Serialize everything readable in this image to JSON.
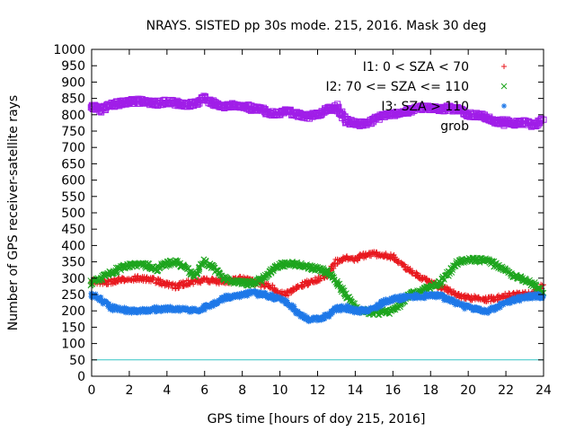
{
  "chart_data": {
    "type": "scatter",
    "title": "NRAYS. SISTED pp 30s mode. 215, 2016. Mask 30 deg",
    "xlabel": "GPS time [hours of doy 215, 2016]",
    "ylabel": "Number of GPS receiver-satellite rays",
    "xlim": [
      0,
      24
    ],
    "ylim": [
      0,
      1000
    ],
    "xticks": [
      "0",
      "2",
      "4",
      "6",
      "8",
      "10",
      "12",
      "14",
      "16",
      "18",
      "20",
      "22",
      "24"
    ],
    "yticks": [
      "0",
      "50",
      "100",
      "150",
      "200",
      "250",
      "300",
      "350",
      "400",
      "450",
      "500",
      "550",
      "600",
      "650",
      "700",
      "750",
      "800",
      "850",
      "900",
      "950",
      "1000"
    ],
    "legend_position": "top-right",
    "grid": false,
    "reference_line": {
      "y": 50,
      "color": "#33c6c6"
    },
    "series": [
      {
        "name": "I1: 0 < SZA < 70",
        "marker": "+",
        "color": "#e8191f",
        "x": [
          0,
          0.5,
          1,
          1.5,
          2,
          2.5,
          3,
          3.5,
          4,
          4.5,
          5,
          5.5,
          6,
          6.5,
          7,
          7.5,
          8,
          8.5,
          9,
          9.5,
          10,
          10.5,
          11,
          11.5,
          12,
          12.5,
          13,
          13.5,
          14,
          14.5,
          15,
          15.5,
          16,
          16.5,
          17,
          17.5,
          18,
          18.5,
          19,
          19.5,
          20,
          20.5,
          21,
          21.5,
          22,
          22.5,
          23,
          23.5,
          24
        ],
        "values": [
          290,
          285,
          290,
          295,
          298,
          300,
          298,
          290,
          280,
          275,
          285,
          290,
          295,
          292,
          285,
          295,
          300,
          290,
          280,
          275,
          250,
          255,
          275,
          285,
          295,
          310,
          350,
          360,
          360,
          370,
          375,
          370,
          365,
          340,
          320,
          300,
          285,
          275,
          260,
          245,
          240,
          240,
          235,
          240,
          245,
          250,
          250,
          255,
          280
        ]
      },
      {
        "name": "I2: 70 <= SZA <= 110",
        "marker": "x",
        "color": "#1ea51e",
        "x": [
          0,
          0.5,
          1,
          1.5,
          2,
          2.5,
          3,
          3.5,
          4,
          4.5,
          5,
          5.5,
          6,
          6.5,
          7,
          7.5,
          8,
          8.5,
          9,
          9.5,
          10,
          10.5,
          11,
          11.5,
          12,
          12.5,
          13,
          13.5,
          14,
          14.5,
          15,
          15.5,
          16,
          16.5,
          17,
          17.5,
          18,
          18.5,
          19,
          19.5,
          20,
          20.5,
          21,
          21.5,
          22,
          22.5,
          23,
          23.5,
          24
        ],
        "values": [
          285,
          300,
          315,
          330,
          340,
          342,
          338,
          328,
          345,
          350,
          330,
          310,
          350,
          330,
          300,
          290,
          285,
          285,
          295,
          320,
          340,
          345,
          342,
          335,
          328,
          320,
          290,
          250,
          210,
          200,
          195,
          195,
          200,
          230,
          250,
          265,
          275,
          285,
          320,
          350,
          355,
          355,
          355,
          340,
          325,
          305,
          295,
          280,
          255
        ]
      },
      {
        "name": "I3: SZA > 110",
        "marker": "*",
        "color": "#1e78e8",
        "x": [
          0,
          0.5,
          1,
          1.5,
          2,
          2.5,
          3,
          3.5,
          4,
          4.5,
          5,
          5.5,
          6,
          6.5,
          7,
          7.5,
          8,
          8.5,
          9,
          9.5,
          10,
          10.5,
          11,
          11.5,
          12,
          12.5,
          13,
          13.5,
          14,
          14.5,
          15,
          15.5,
          16,
          16.5,
          17,
          17.5,
          18,
          18.5,
          19,
          19.5,
          20,
          20.5,
          21,
          21.5,
          22,
          22.5,
          23,
          23.5,
          24
        ],
        "values": [
          250,
          235,
          210,
          205,
          200,
          200,
          202,
          205,
          208,
          205,
          203,
          200,
          210,
          220,
          240,
          245,
          250,
          255,
          250,
          245,
          235,
          220,
          190,
          175,
          175,
          185,
          205,
          210,
          200,
          200,
          210,
          225,
          235,
          240,
          245,
          245,
          248,
          245,
          235,
          220,
          210,
          205,
          200,
          210,
          225,
          235,
          240,
          245,
          245
        ]
      },
      {
        "name": "grob",
        "marker": "square",
        "color": "#a01ee8",
        "x": [
          0,
          0.5,
          1,
          1.5,
          2,
          2.5,
          3,
          3.5,
          4,
          4.5,
          5,
          5.5,
          6,
          6.5,
          7,
          7.5,
          8,
          8.5,
          9,
          9.5,
          10,
          10.5,
          11,
          11.5,
          12,
          12.5,
          13,
          13.5,
          14,
          14.5,
          15,
          15.5,
          16,
          16.5,
          17,
          17.5,
          18,
          18.5,
          19,
          19.5,
          20,
          20.5,
          21,
          21.5,
          22,
          22.5,
          23,
          23.5,
          24
        ],
        "values": [
          825,
          815,
          830,
          835,
          840,
          842,
          838,
          835,
          840,
          835,
          830,
          835,
          850,
          835,
          825,
          828,
          830,
          820,
          815,
          805,
          805,
          810,
          800,
          795,
          800,
          815,
          825,
          780,
          775,
          770,
          785,
          795,
          800,
          805,
          815,
          820,
          822,
          818,
          820,
          815,
          800,
          800,
          790,
          780,
          778,
          775,
          775,
          770,
          785
        ]
      }
    ]
  }
}
